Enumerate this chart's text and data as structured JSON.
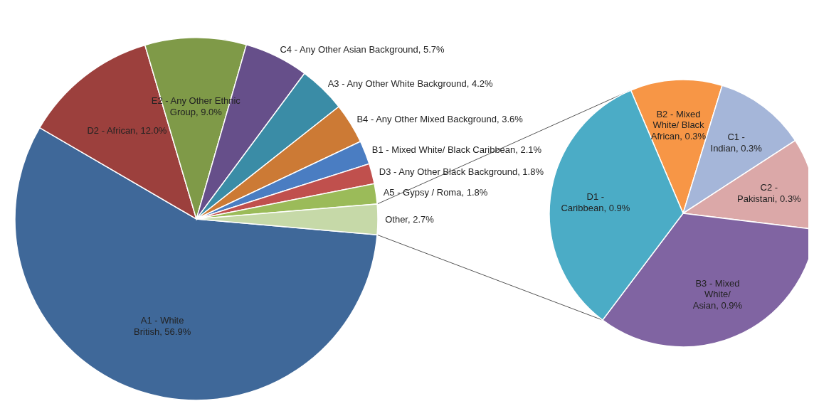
{
  "chart_data": [
    {
      "type": "pie",
      "categories": [
        "A1 - White British",
        "D2 - African",
        "E2 - Any Other Ethnic Group",
        "C4 - Any Other Asian Background",
        "A3 - Any Other White Background",
        "B4 - Any Other Mixed Background",
        "B1 - Mixed White/ Black Caribbean",
        "D3 - Any Other Black Background",
        "A5 - Gypsy / Roma",
        "Other"
      ],
      "values": [
        56.9,
        12.0,
        9.0,
        5.7,
        4.2,
        3.6,
        2.1,
        1.8,
        1.8,
        2.7
      ],
      "value_labels": [
        "56.9%",
        "12.0%",
        "9.0%",
        "5.7%",
        "4.2%",
        "3.6%",
        "2.1%",
        "1.8%",
        "1.8%",
        "2.7%"
      ],
      "colors": [
        "#3f6899",
        "#9c403d",
        "#7f9a48",
        "#664f8a",
        "#3a8ca6",
        "#cc7a35",
        "#4a7dc2",
        "#c0504d",
        "#9bbb59",
        "#c6d9a8"
      ]
    },
    {
      "type": "pie",
      "categories": [
        "B2 - Mixed White/ Black African",
        "C1 - Indian",
        "C2 - Pakistani",
        "B3 - Mixed White/ Asian",
        "D1 - Caribbean"
      ],
      "values": [
        0.3,
        0.3,
        0.3,
        0.9,
        0.9
      ],
      "value_labels": [
        "0.3%",
        "0.3%",
        "0.3%",
        "0.9%",
        "0.9%"
      ],
      "colors": [
        "#f79646",
        "#a5b6d9",
        "#dba8a8",
        "#8064a2",
        "#4bacc6"
      ]
    }
  ]
}
